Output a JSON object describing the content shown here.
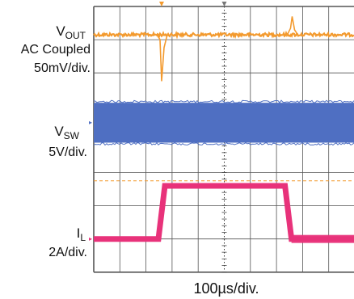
{
  "chart_data": {
    "type": "line",
    "title": "",
    "xlabel": "100µs/div.",
    "grid": true,
    "grid_divisions": {
      "x": 10,
      "y": 8
    },
    "x_range_divisions": [
      0,
      10
    ],
    "y_range_divisions": [
      0,
      8
    ],
    "channels": [
      {
        "label_main": "V",
        "label_sub": "OUT",
        "label_line2": "AC Coupled",
        "label_line3": "50mV/div.",
        "color": "#f39a2e",
        "baseline_div": 0.85,
        "transients": [
          {
            "x_div": 5.35,
            "kind": "undershoot",
            "depth_div": 1.15
          },
          {
            "x_div": 15.05,
            "kind": "overshoot",
            "depth_div": 0.65
          }
        ]
      },
      {
        "label_main": "V",
        "label_sub": "SW",
        "label_line2": "5V/div.",
        "color": "#4f6fc2",
        "band_top_div": 2.9,
        "band_bottom_div": 4.1
      },
      {
        "label_main": "I",
        "label_sub": "L",
        "label_line2": "2A/div.",
        "color": "#e8327a",
        "low_div": 7.0,
        "high_div": 5.4,
        "dashed_ref_div": 5.25,
        "rise_x_div": 5.2,
        "fall_x_div": 14.9
      }
    ]
  }
}
